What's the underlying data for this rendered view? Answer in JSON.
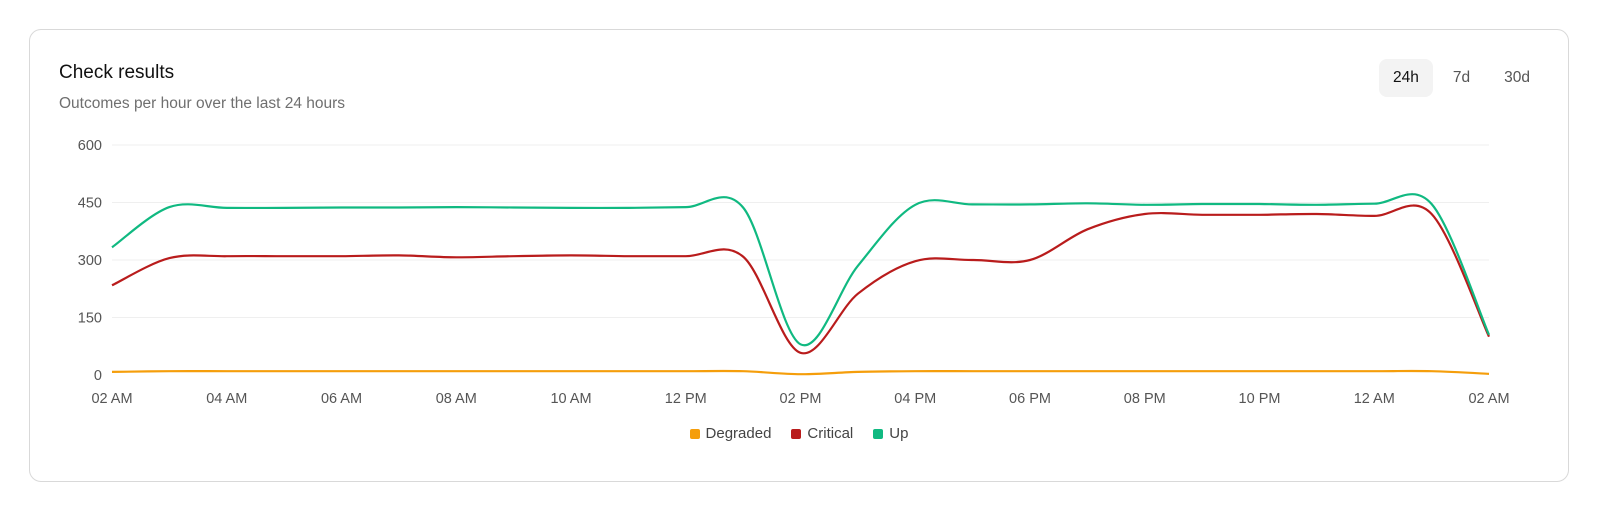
{
  "card": {
    "title": "Check results",
    "subtitle": "Outcomes per hour over the last 24 hours",
    "range_options": [
      {
        "label": "24h",
        "active": true
      },
      {
        "label": "7d",
        "active": false
      },
      {
        "label": "30d",
        "active": false
      }
    ]
  },
  "chart_data": {
    "type": "line",
    "title": "",
    "xlabel": "",
    "ylabel": "",
    "ylim": [
      0,
      600
    ],
    "yticks": [
      0,
      150,
      300,
      450,
      600
    ],
    "x_tick_labels": [
      "02 AM",
      "04 AM",
      "06 AM",
      "08 AM",
      "10 AM",
      "12 PM",
      "02 PM",
      "04 PM",
      "06 PM",
      "08 PM",
      "10 PM",
      "12 AM",
      "02 AM"
    ],
    "x_hours": [
      "02 AM",
      "03 AM",
      "04 AM",
      "05 AM",
      "06 AM",
      "07 AM",
      "08 AM",
      "09 AM",
      "10 AM",
      "11 AM",
      "12 PM",
      "01 PM",
      "02 PM",
      "03 PM",
      "04 PM",
      "05 PM",
      "06 PM",
      "07 PM",
      "08 PM",
      "09 PM",
      "10 PM",
      "11 PM",
      "12 AM",
      "01 AM",
      "02 AM"
    ],
    "grid": true,
    "legend_position": "bottom-center",
    "series": [
      {
        "name": "Degraded",
        "color": "#f59e0b",
        "values": [
          8,
          10,
          10,
          10,
          10,
          10,
          10,
          10,
          10,
          10,
          10,
          10,
          2,
          8,
          10,
          10,
          10,
          10,
          10,
          10,
          10,
          10,
          10,
          10,
          3
        ]
      },
      {
        "name": "Critical",
        "color": "#b91c1c",
        "values": [
          234,
          305,
          310,
          310,
          310,
          312,
          307,
          310,
          312,
          310,
          310,
          309,
          58,
          212,
          297,
          300,
          300,
          380,
          420,
          418,
          418,
          420,
          415,
          420,
          100
        ]
      },
      {
        "name": "Up",
        "color": "#10b981",
        "values": [
          333,
          438,
          436,
          436,
          437,
          437,
          438,
          437,
          436,
          436,
          438,
          437,
          80,
          285,
          444,
          445,
          445,
          448,
          444,
          446,
          446,
          444,
          447,
          446,
          105
        ]
      }
    ]
  }
}
